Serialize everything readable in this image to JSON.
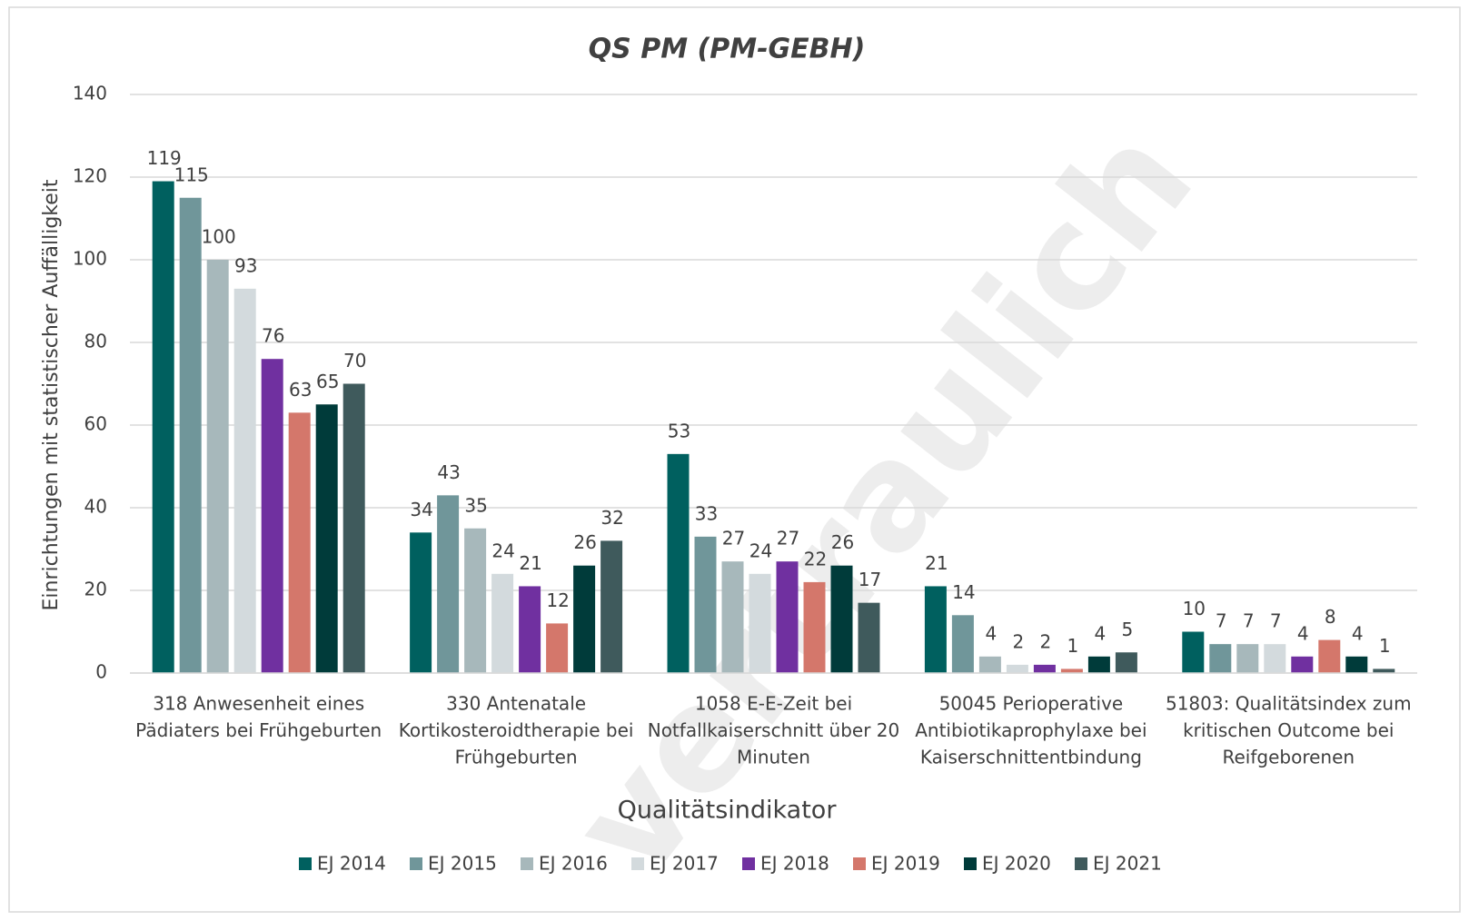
{
  "chart_data": {
    "type": "bar",
    "title": "QS PM (PM-GEBH)",
    "watermark": "vertraulich",
    "x_label": "Qualitätsindikator",
    "y_label": "Einrichtungen mit statistischer Auffälligkeit",
    "categories": [
      [
        "318 Anwesenheit eines",
        "Pädiaters bei Frühgeburten"
      ],
      [
        "330 Antenatale",
        "Kortikosteroidtherapie bei",
        "Frühgeburten"
      ],
      [
        "1058 E-E-Zeit bei",
        "Notfallkaiserschnitt über 20",
        "Minuten"
      ],
      [
        "50045 Perioperative",
        "Antibiotikaprophylaxe bei",
        "Kaiserschnittentbindung"
      ],
      [
        "51803: Qualitätsindex zum",
        "kritischen Outcome bei",
        "Reifgeborenen"
      ]
    ],
    "series": [
      {
        "name": "EJ 2014",
        "color": "#00605f",
        "values": [
          119,
          34,
          53,
          21,
          10
        ]
      },
      {
        "name": "EJ 2015",
        "color": "#70969a",
        "values": [
          115,
          43,
          33,
          14,
          7
        ]
      },
      {
        "name": "EJ 2016",
        "color": "#a7b8bb",
        "values": [
          100,
          35,
          27,
          4,
          7
        ]
      },
      {
        "name": "EJ 2017",
        "color": "#d3dadd",
        "values": [
          93,
          24,
          24,
          2,
          7
        ]
      },
      {
        "name": "EJ 2018",
        "color": "#7030a0",
        "values": [
          76,
          21,
          27,
          2,
          4
        ]
      },
      {
        "name": "EJ 2019",
        "color": "#d4776b",
        "values": [
          63,
          12,
          22,
          1,
          8
        ]
      },
      {
        "name": "EJ 2020",
        "color": "#003b3a",
        "values": [
          65,
          26,
          26,
          4,
          4
        ]
      },
      {
        "name": "EJ 2021",
        "color": "#3f5a5c",
        "values": [
          70,
          32,
          17,
          5,
          1
        ]
      }
    ],
    "ylim": [
      0,
      140
    ],
    "yticks": [
      0,
      20,
      40,
      60,
      80,
      100,
      120,
      140
    ],
    "grid": true,
    "legend": "bottom"
  }
}
